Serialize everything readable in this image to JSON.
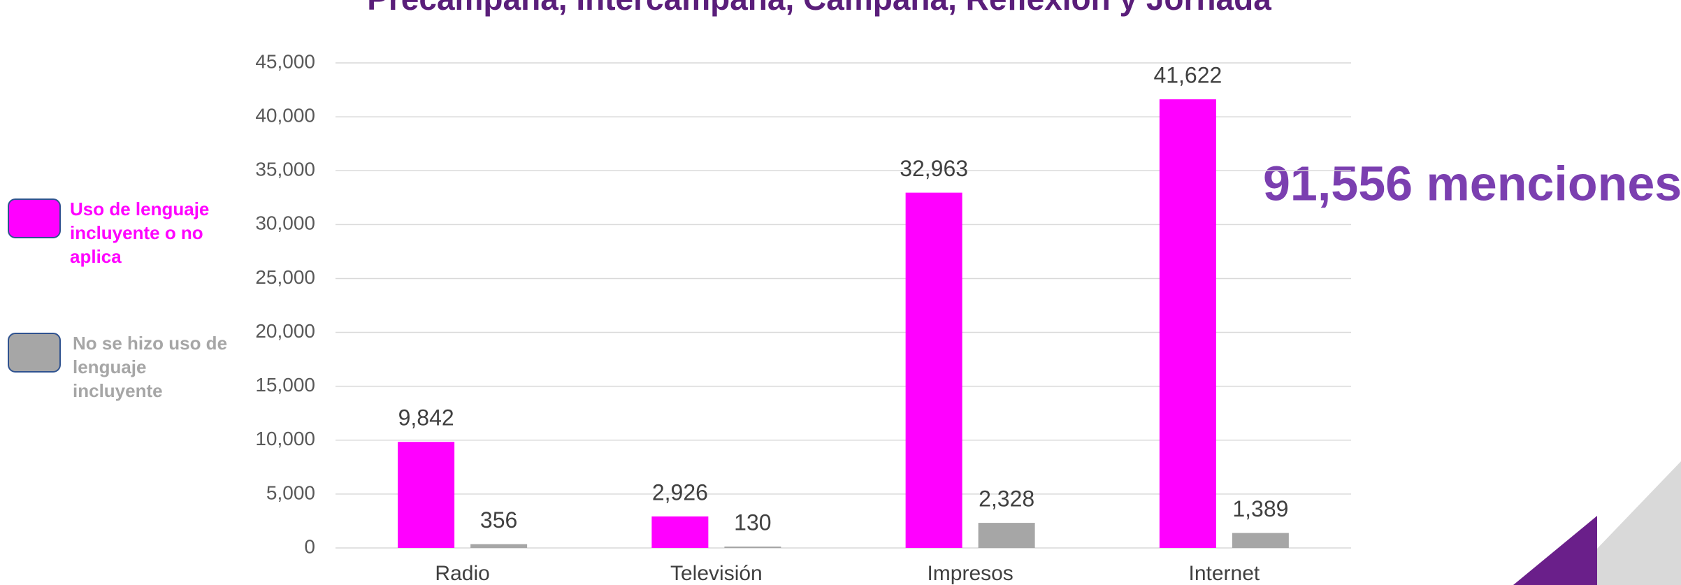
{
  "chart_data": {
    "type": "bar",
    "title": "Precampaña, Intercampaña, Campaña, Reflexión y Jornada",
    "annotation": "91,556 menciones",
    "categories": [
      "Radio",
      "Televisión",
      "Impresos",
      "Internet"
    ],
    "series": [
      {
        "name": "Uso de lenguaje incluyente o no aplica",
        "color": "#ff00ff",
        "values": [
          9842,
          2926,
          32963,
          41622
        ],
        "value_labels": [
          "9,842",
          "2,926",
          "32,963",
          "41,622"
        ]
      },
      {
        "name": "No se hizo uso de lenguaje incluyente",
        "color": "#a6a6a6",
        "values": [
          356,
          130,
          2328,
          1389
        ],
        "value_labels": [
          "356",
          "130",
          "2,328",
          "1,389"
        ]
      }
    ],
    "ylim": [
      0,
      45000
    ],
    "yticks": [
      0,
      {
        "value": 5000,
        "label": "5,000"
      },
      {
        "value": 10000,
        "label": "10,000"
      },
      {
        "value": 15000,
        "label": "15,000"
      },
      {
        "value": 20000,
        "label": "20,000"
      },
      {
        "value": 25000,
        "label": "25,000"
      },
      {
        "value": 30000,
        "label": "30,000"
      },
      {
        "value": 35000,
        "label": "35,000"
      },
      {
        "value": 40000,
        "label": "40,000"
      },
      {
        "value": 45000,
        "label": "45,000"
      }
    ],
    "grid": true,
    "legend": "left"
  }
}
